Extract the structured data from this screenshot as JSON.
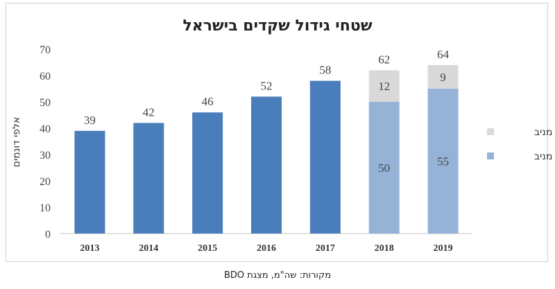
{
  "source": "מקורות: שה\"מ, מצגת BDO",
  "colors": {
    "main": "#4a7ebb",
    "lower": "#95b3d7",
    "upper": "#d9d9d9",
    "axis": "#d9d9d9"
  },
  "chart_data": {
    "type": "bar",
    "title": "שטחי גידול שקדים בישראל",
    "ylabel": "אלפי דונמים",
    "xlabel": "",
    "ylim": [
      0,
      70
    ],
    "yticks": [
      0,
      10,
      20,
      30,
      40,
      50,
      60,
      70
    ],
    "grid": false,
    "legend_position": "right",
    "categories": [
      "2013",
      "2014",
      "2015",
      "2016",
      "2017",
      "2018",
      "2019"
    ],
    "totals": [
      39,
      42,
      46,
      52,
      58,
      62,
      64
    ],
    "series": [
      {
        "name": "מניב",
        "values": [
          null,
          null,
          null,
          null,
          null,
          50,
          55
        ]
      },
      {
        "name": "לא מניב",
        "values": [
          null,
          null,
          null,
          null,
          null,
          12,
          9
        ]
      }
    ]
  }
}
